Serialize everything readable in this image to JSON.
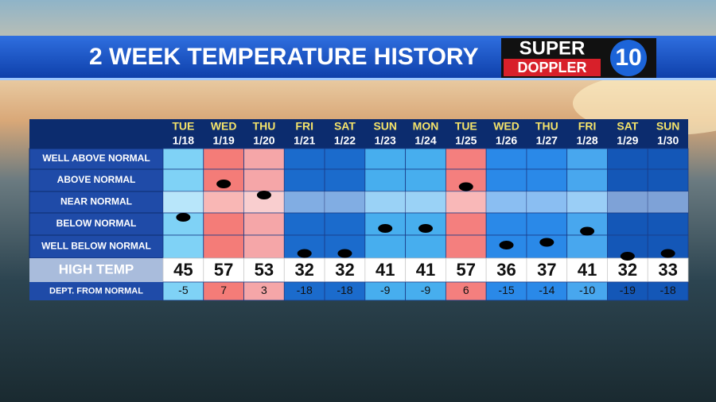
{
  "header": {
    "title": "2 WEEK TEMPERATURE HISTORY",
    "logo": {
      "top": "SUPER",
      "bottom": "DOPPLER",
      "number": "10"
    }
  },
  "table": {
    "row_labels": [
      "WELL ABOVE NORMAL",
      "ABOVE NORMAL",
      "NEAR NORMAL",
      "BELOW NORMAL",
      "WELL BELOW NORMAL"
    ],
    "high_label": "HIGH TEMP",
    "dept_label": "DEPT. FROM NORMAL",
    "days": [
      {
        "day": "TUE",
        "date": "1/18",
        "high": 45,
        "dept": -5,
        "color": "#7fd2f6"
      },
      {
        "day": "WED",
        "date": "1/19",
        "high": 57,
        "dept": 7,
        "color": "#f47c78"
      },
      {
        "day": "THU",
        "date": "1/20",
        "high": 53,
        "dept": 3,
        "color": "#f5a6a8"
      },
      {
        "day": "FRI",
        "date": "1/21",
        "high": 32,
        "dept": -18,
        "color": "#1b6bcc"
      },
      {
        "day": "SAT",
        "date": "1/22",
        "high": 32,
        "dept": -18,
        "color": "#1b6bcc"
      },
      {
        "day": "SUN",
        "date": "1/23",
        "high": 41,
        "dept": -9,
        "color": "#47aeee"
      },
      {
        "day": "MON",
        "date": "1/24",
        "high": 41,
        "dept": -9,
        "color": "#47aeee"
      },
      {
        "day": "TUE",
        "date": "1/25",
        "high": 57,
        "dept": 6,
        "color": "#f47f7e"
      },
      {
        "day": "WED",
        "date": "1/26",
        "high": 36,
        "dept": -15,
        "color": "#2a89e8"
      },
      {
        "day": "THU",
        "date": "1/27",
        "high": 37,
        "dept": -14,
        "color": "#2a89e8"
      },
      {
        "day": "FRI",
        "date": "1/28",
        "high": 41,
        "dept": -10,
        "color": "#48a7ee"
      },
      {
        "day": "SAT",
        "date": "1/29",
        "high": 32,
        "dept": -19,
        "color": "#1457b7"
      },
      {
        "day": "SUN",
        "date": "1/30",
        "high": 33,
        "dept": -18,
        "color": "#1457b7"
      }
    ]
  }
}
